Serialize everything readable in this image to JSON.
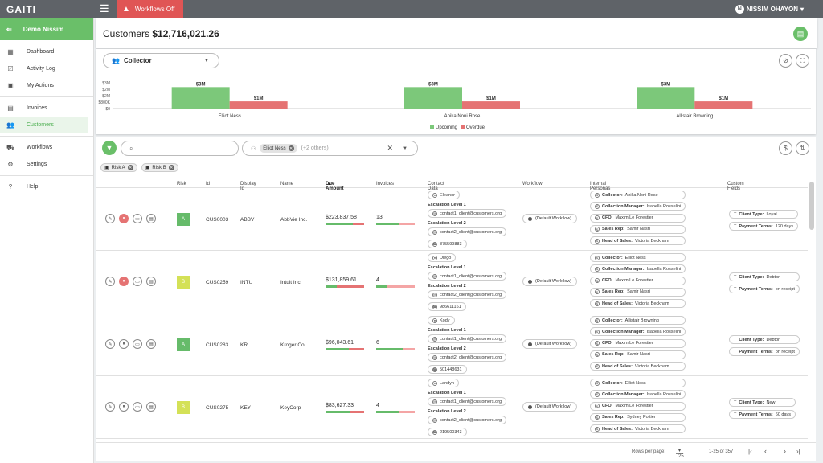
{
  "topbar": {
    "logo": "GAITI",
    "workflows_off": "Workflows Off",
    "user": "NISSIM OHAYON",
    "avatar": "N"
  },
  "sidebar": {
    "company": "Demo Nissim",
    "items": [
      {
        "label": "Dashboard",
        "icon": "dashboard-icon",
        "glyph": "▦"
      },
      {
        "label": "Activity Log",
        "icon": "activity-log-icon",
        "glyph": "☑"
      },
      {
        "label": "My Actions",
        "icon": "calendar-icon",
        "glyph": "▣"
      },
      {
        "label": "Invoices",
        "icon": "invoice-icon",
        "glyph": "▤"
      },
      {
        "label": "Customers",
        "icon": "customers-icon",
        "glyph": "👥",
        "active": true
      },
      {
        "label": "Workflows",
        "icon": "workflow-icon",
        "glyph": "⛟"
      },
      {
        "label": "Settings",
        "icon": "gear-icon",
        "glyph": "⚙"
      },
      {
        "label": "Help",
        "icon": "help-icon",
        "glyph": "?"
      }
    ]
  },
  "header": {
    "title_prefix": "Customers",
    "title_amount": "$12,716,021.26"
  },
  "collector": {
    "label": "Collector"
  },
  "chart_data": {
    "type": "bar",
    "categories": [
      "Elliot Ness",
      "Anika Noni Rose",
      "Allistair Browning"
    ],
    "series": [
      {
        "name": "Upcoming",
        "color": "#7cc87a",
        "values": [
          3,
          3,
          3
        ],
        "labels": [
          "$3M",
          "$3M",
          "$3M"
        ]
      },
      {
        "name": "Overdue",
        "color": "#e57373",
        "values": [
          1,
          1,
          1
        ],
        "labels": [
          "$1M",
          "$1M",
          "$1M"
        ]
      }
    ],
    "yticks": [
      "$3M",
      "$2M",
      "$2M",
      "$800K",
      "$0"
    ],
    "ylim": [
      0,
      3.6
    ],
    "legend": "bottom"
  },
  "filters": {
    "search_placeholder": "",
    "collector_chip": "Elliot Ness",
    "others": "(+2 others)",
    "risk_chips": [
      "Risk A",
      "Risk B"
    ]
  },
  "table": {
    "columns": [
      "Risk",
      "Id",
      "Display Id",
      "Name",
      "Due Amount",
      "Invoices",
      "Contact Data",
      "Workflow",
      "Internal Personas",
      "Custom Fields"
    ],
    "sort_arrow": "▲",
    "rows": [
      {
        "risk": "A",
        "risk_color": "#66bb6a",
        "id": "CUS0003",
        "display_id": "ABBV",
        "name": "AbbVie Inc.",
        "due": "$223,837.58",
        "due_split": 0.7,
        "invoices": "13",
        "inv_split": 0.6,
        "paused": true,
        "contact": {
          "name": "Eleanor",
          "esc1": "Escalation Level 1",
          "email1": "contact1_client@customers.org",
          "esc2": "Escalation Level 2",
          "email2": "contact2_client@customers.org",
          "phone": "875599883"
        },
        "workflow": "(Default Workflow)",
        "personas": [
          {
            "k": "Collector:",
            "v": "Anika Noni Rose"
          },
          {
            "k": "Collection Manager:",
            "v": "Isabella Rosselini"
          },
          {
            "k": "CFO:",
            "v": "Maxim Le Forestier"
          },
          {
            "k": "Sales Rep:",
            "v": "Samir Nasri"
          },
          {
            "k": "Head of Sales:",
            "v": "Victoria Beckham"
          }
        ],
        "custom": [
          {
            "k": "Client Type:",
            "v": "Loyal"
          },
          {
            "k": "Payment Terms:",
            "v": "120 days"
          }
        ]
      },
      {
        "risk": "B",
        "risk_color": "#d4e157",
        "id": "CUS0259",
        "display_id": "INTU",
        "name": "Intuit Inc.",
        "due": "$131,859.61",
        "due_split": 0.3,
        "invoices": "4",
        "inv_split": 0.3,
        "paused": true,
        "contact": {
          "name": "Diego",
          "esc1": "Escalation Level 1",
          "email1": "contact1_client@customers.org",
          "esc2": "Escalation Level 2",
          "email2": "contact2_client@customers.org",
          "phone": "986611161"
        },
        "workflow": "(Default Workflow)",
        "personas": [
          {
            "k": "Collector:",
            "v": "Elliot Ness"
          },
          {
            "k": "Collection Manager:",
            "v": "Isabella Rosselini"
          },
          {
            "k": "CFO:",
            "v": "Maxim Le Forestier"
          },
          {
            "k": "Sales Rep:",
            "v": "Samir Nasri"
          },
          {
            "k": "Head of Sales:",
            "v": "Victoria Beckham"
          }
        ],
        "custom": [
          {
            "k": "Client Type:",
            "v": "Debtor"
          },
          {
            "k": "Payment Terms:",
            "v": "on receipt"
          }
        ]
      },
      {
        "risk": "A",
        "risk_color": "#66bb6a",
        "id": "CUS0283",
        "display_id": "KR",
        "name": "Kroger Co.",
        "due": "$96,043.61",
        "due_split": 0.6,
        "invoices": "6",
        "inv_split": 0.7,
        "paused": false,
        "contact": {
          "name": "Kody",
          "esc1": "Escalation Level 1",
          "email1": "contact1_client@customers.org",
          "esc2": "Escalation Level 2",
          "email2": "contact2_client@customers.org",
          "phone": "501448631"
        },
        "workflow": "(Default Workflow)",
        "personas": [
          {
            "k": "Collector:",
            "v": "Allistair Browning"
          },
          {
            "k": "Collection Manager:",
            "v": "Isabella Rosselini"
          },
          {
            "k": "CFO:",
            "v": "Maxim Le Forestier"
          },
          {
            "k": "Sales Rep:",
            "v": "Samir Nasri"
          },
          {
            "k": "Head of Sales:",
            "v": "Victoria Beckham"
          }
        ],
        "custom": [
          {
            "k": "Client Type:",
            "v": "Debtor"
          },
          {
            "k": "Payment Terms:",
            "v": "on receipt"
          }
        ]
      },
      {
        "risk": "B",
        "risk_color": "#d4e157",
        "id": "CUS0275",
        "display_id": "KEY",
        "name": "KeyCorp",
        "due": "$83,627.33",
        "due_split": 0.65,
        "invoices": "4",
        "inv_split": 0.6,
        "paused": false,
        "contact": {
          "name": "Landyn",
          "esc1": "Escalation Level 1",
          "email1": "contact1_client@customers.org",
          "esc2": "Escalation Level 2",
          "email2": "contact2_client@customers.org",
          "phone": "219500343"
        },
        "workflow": "(Default Workflow)",
        "personas": [
          {
            "k": "Collector:",
            "v": "Elliot Ness"
          },
          {
            "k": "Collection Manager:",
            "v": "Isabella Rosselini"
          },
          {
            "k": "CFO:",
            "v": "Maxim Le Forestier"
          },
          {
            "k": "Sales Rep:",
            "v": "Sydney Poitier"
          },
          {
            "k": "Head of Sales:",
            "v": "Victoria Beckham"
          }
        ],
        "custom": [
          {
            "k": "Client Type:",
            "v": "New"
          },
          {
            "k": "Payment Terms:",
            "v": "60 days"
          }
        ]
      }
    ]
  },
  "footer": {
    "rows_per_page": "Rows per page:",
    "per_page": "25",
    "range": "1-25 of 357",
    "first": "|‹",
    "prev": "‹",
    "next": "›",
    "last": "›|"
  }
}
